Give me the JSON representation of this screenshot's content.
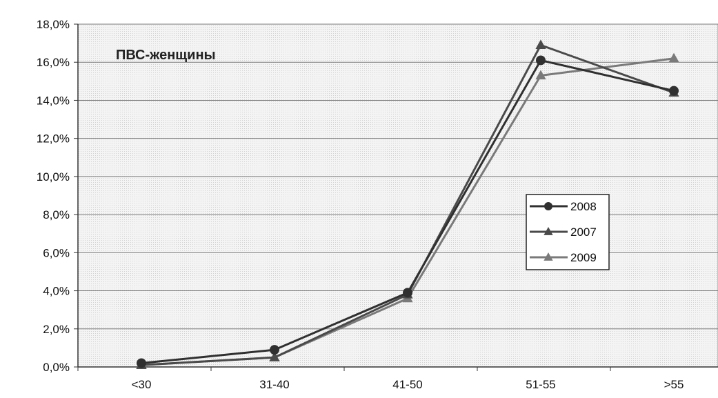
{
  "chart_data": {
    "type": "line",
    "title": "ПВС-женщины",
    "categories": [
      "<30",
      "31-40",
      "41-50",
      "51-55",
      ">55"
    ],
    "ylim": [
      0,
      18
    ],
    "yticks": [
      "0,0%",
      "2,0%",
      "4,0%",
      "6,0%",
      "8,0%",
      "10,0%",
      "12,0%",
      "14,0%",
      "16,0%",
      "18,0%"
    ],
    "grid": true,
    "legend_position": "right",
    "series": [
      {
        "name": "2008",
        "values": [
          0.2,
          0.9,
          3.9,
          16.1,
          14.5
        ],
        "marker": "circle",
        "color": "#303030"
      },
      {
        "name": "2007",
        "values": [
          0.1,
          0.5,
          3.8,
          16.9,
          14.4
        ],
        "marker": "triangle",
        "color": "#4a4a4a"
      },
      {
        "name": "2009",
        "values": [
          0.1,
          0.5,
          3.6,
          15.3,
          16.2
        ],
        "marker": "triangle",
        "color": "#7a7a7a"
      }
    ]
  }
}
